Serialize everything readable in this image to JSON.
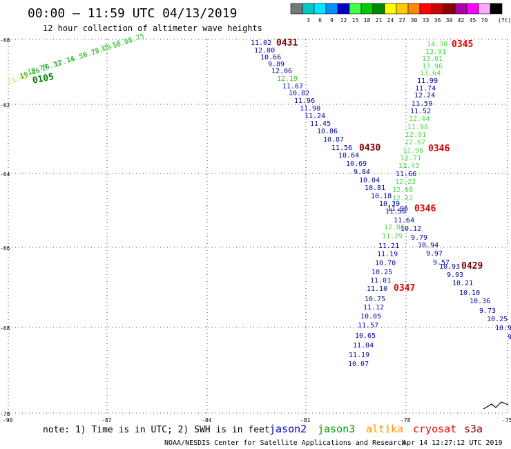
{
  "title": "00:00 – 11:59 UTC 04/13/2019",
  "subtitle": "12 hour collection of altimeter wave heights",
  "colorbar": {
    "unit": "(ft)",
    "swatches": [
      {
        "label": "",
        "color": "#777777"
      },
      {
        "label": "3",
        "color": "#00c8c8"
      },
      {
        "label": "6",
        "color": "#00e8ff"
      },
      {
        "label": "9",
        "color": "#0090ff"
      },
      {
        "label": "12",
        "color": "#0000c8"
      },
      {
        "label": "15",
        "color": "#44ff44"
      },
      {
        "label": "18",
        "color": "#00cc00"
      },
      {
        "label": "21",
        "color": "#008800"
      },
      {
        "label": "24",
        "color": "#ffff00"
      },
      {
        "label": "27",
        "color": "#ffcc00"
      },
      {
        "label": "30",
        "color": "#ff8800"
      },
      {
        "label": "33",
        "color": "#ff0000"
      },
      {
        "label": "36",
        "color": "#cc0000"
      },
      {
        "label": "39",
        "color": "#880000"
      },
      {
        "label": "42",
        "color": "#aa00aa"
      },
      {
        "label": "45",
        "color": "#ff00ff"
      },
      {
        "label": "70",
        "color": "#ffaaff"
      },
      {
        "label": "",
        "color": "#000000"
      }
    ]
  },
  "axes": {
    "lat_labels": [
      "-60",
      "-62",
      "-64",
      "-66",
      "-68",
      "-70"
    ],
    "lon_labels": [
      "-90",
      "-87",
      "-84",
      "-81",
      "-78",
      "-75"
    ]
  },
  "tracks": [
    {
      "sat": "jason2",
      "time": "0431",
      "time_color": "#800000",
      "color": "#0000a8",
      "values": [
        "11.02",
        "12.00",
        "10.66",
        "9.89",
        "12.06",
        "12.19",
        "11.67",
        "10.82",
        "11.96",
        "11.90",
        "11.24",
        "11.45",
        "10.86",
        "10.87",
        "11.56",
        "10.64",
        "10.69",
        "9.84",
        "10.04",
        "10.81",
        "10.18",
        "10.39",
        "11.58",
        "11.64",
        "10.12",
        "9.79",
        "10.94",
        "9.97",
        "9.57",
        "10.93",
        "9.93",
        "10.21",
        "10.10",
        "10.36",
        "9.73",
        "10.25",
        "10.9",
        "9"
      ]
    },
    {
      "sat": "jason3",
      "time": "0105",
      "time_color": "#008000",
      "color": "#00b000",
      "values": [
        "21.43",
        "19.06",
        "19.79",
        "19.31",
        "17.74",
        "15.59",
        "16.78",
        "18.03",
        "15.56",
        "16.04",
        "15.75"
      ]
    },
    {
      "sat": "cryosat",
      "time": "0345",
      "time_color": "#e00000",
      "color": "#1aa01a",
      "values": [
        "14.38",
        "13.91",
        "13.01",
        "13.96",
        "13.64",
        "11.99",
        "11.74",
        "12.24",
        "11.59",
        "11.52",
        "12.44",
        "11.98",
        "12.91",
        "12.67",
        "12.96",
        "12.71",
        "13.43",
        "11.66",
        "12.23",
        "12.98",
        "12.22",
        "11.96",
        "12.06",
        "11.29",
        "11.21",
        "11.19",
        "10.70",
        "10.25",
        "11.01",
        "11.10",
        "10.75",
        "11.12",
        "10.05",
        "11.57",
        "10.65",
        "11.04",
        "11.19",
        "10.07"
      ]
    },
    {
      "sat": "other",
      "time": "0430",
      "time_color": "#800000",
      "color": "#000000",
      "values": []
    },
    {
      "sat": "other2",
      "time": "0346",
      "time_color": "#e00000",
      "color": "#000000",
      "values": []
    },
    {
      "sat": "other3",
      "time": "0346",
      "time_color": "#e00000",
      "color": "#000000",
      "values": []
    },
    {
      "sat": "other4",
      "time": "0429",
      "time_color": "#800000",
      "color": "#000000",
      "values": []
    },
    {
      "sat": "other5",
      "time": "0347",
      "time_color": "#e00000",
      "color": "#000000",
      "values": []
    }
  ],
  "note": "note: 1) Time is in UTC; 2) SWH is in feet",
  "legend": [
    {
      "name": "jason2",
      "color": "#0000cc"
    },
    {
      "name": "jason3",
      "color": "#00a000"
    },
    {
      "name": "altika",
      "color": "#ff9900"
    },
    {
      "name": "cryosat",
      "color": "#ff0000"
    },
    {
      "name": "s3a",
      "color": "#990000"
    }
  ],
  "footer_left": "NOAA/NESDIS Center for Satellite Applications and Research",
  "footer_right": "Apr 14 12:27:12 UTC 2019"
}
